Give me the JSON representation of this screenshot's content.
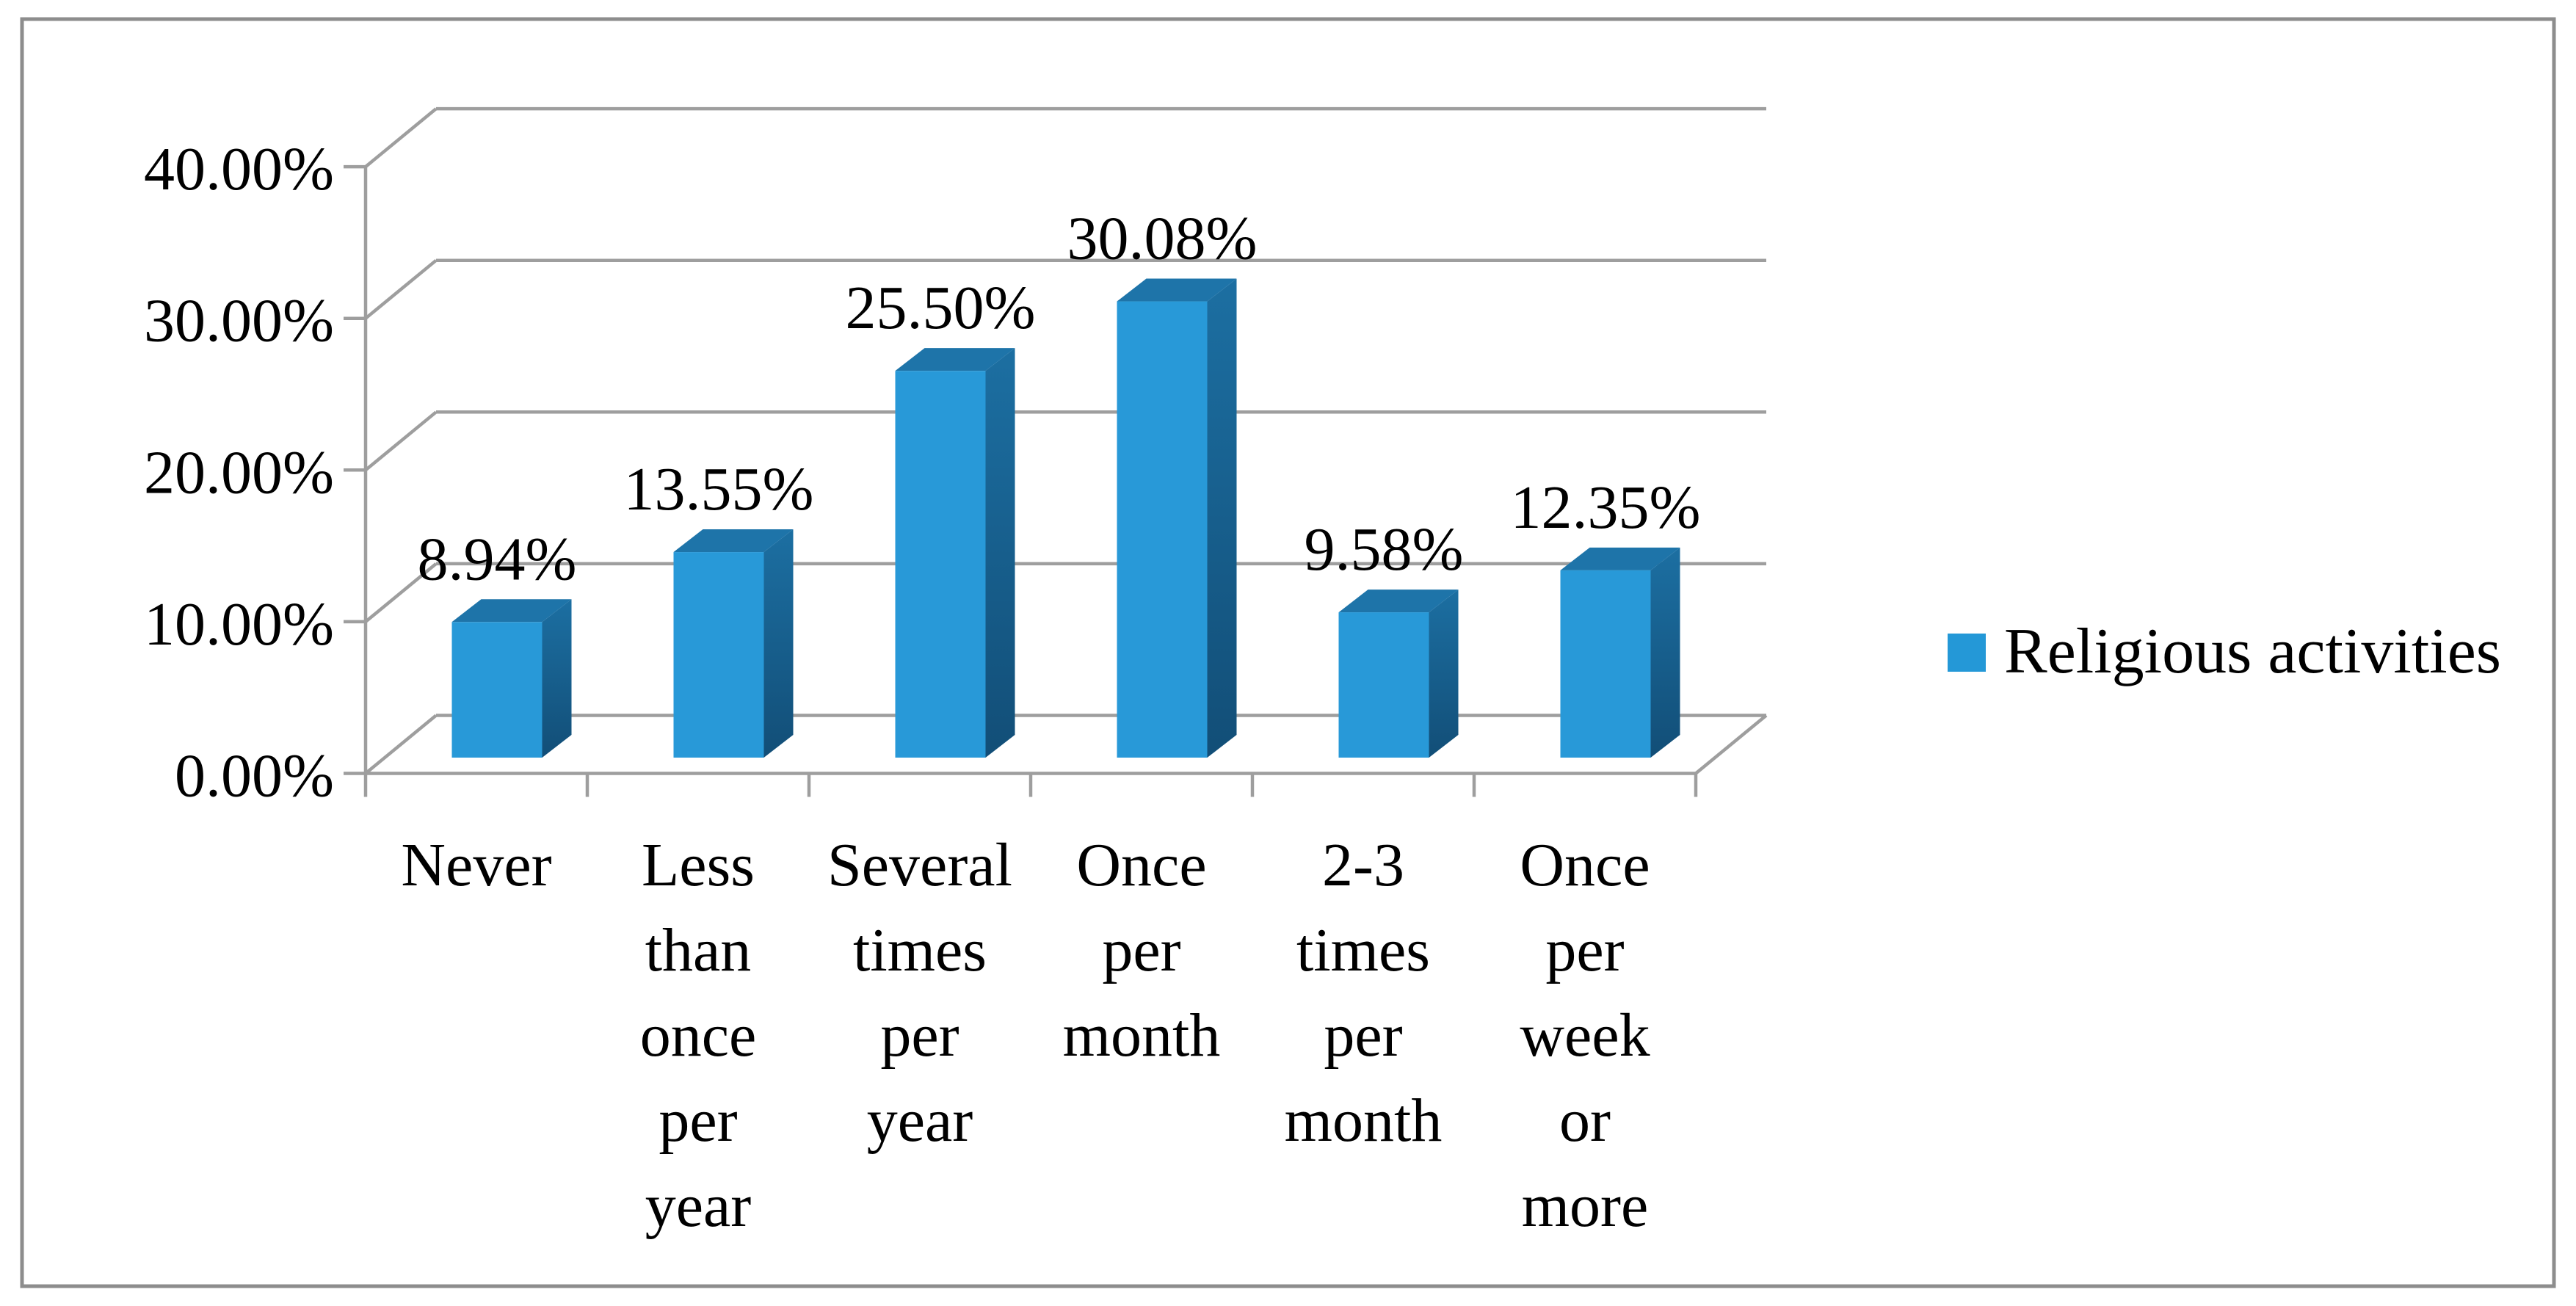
{
  "chart_data": {
    "type": "bar",
    "variant": "3d-column",
    "categories": [
      {
        "label": "Never",
        "lines": [
          "Never"
        ]
      },
      {
        "label": "Less than once per year",
        "lines": [
          "Less",
          "than",
          "once",
          "per",
          "year"
        ]
      },
      {
        "label": "Several times per year",
        "lines": [
          "Several",
          "times",
          "per",
          "year"
        ]
      },
      {
        "label": "Once per month",
        "lines": [
          "Once",
          "per",
          "month"
        ]
      },
      {
        "label": "2-3 times per month",
        "lines": [
          "2-3",
          "times",
          "per",
          "month"
        ]
      },
      {
        "label": "Once per week or more",
        "lines": [
          "Once",
          "per",
          "week",
          "or",
          "more"
        ]
      }
    ],
    "series": [
      {
        "name": "Religious activities",
        "values": [
          8.94,
          13.55,
          25.5,
          30.08,
          9.58,
          12.35
        ],
        "data_labels": [
          "8.94%",
          "13.55%",
          "25.50%",
          "30.08%",
          "9.58%",
          "12.35%"
        ]
      }
    ],
    "y_axis": {
      "ticks": [
        "0.00%",
        "10.00%",
        "20.00%",
        "30.00%",
        "40.00%"
      ],
      "min": 0,
      "max": 40,
      "unit": "percent"
    },
    "legend": {
      "label": "Religious activities",
      "position": "right",
      "marker": "square"
    },
    "grid": true,
    "colors": {
      "bar_front": "#2899d8",
      "bar_top": "#1e74a9",
      "bar_side_top": "#1c6fa2",
      "bar_side_bottom": "#124e77",
      "legend_key": "#2498d7",
      "gridline": "#9e9e9e",
      "border": "#8d8d8d",
      "text": "#000000",
      "background": "#ffffff"
    }
  }
}
